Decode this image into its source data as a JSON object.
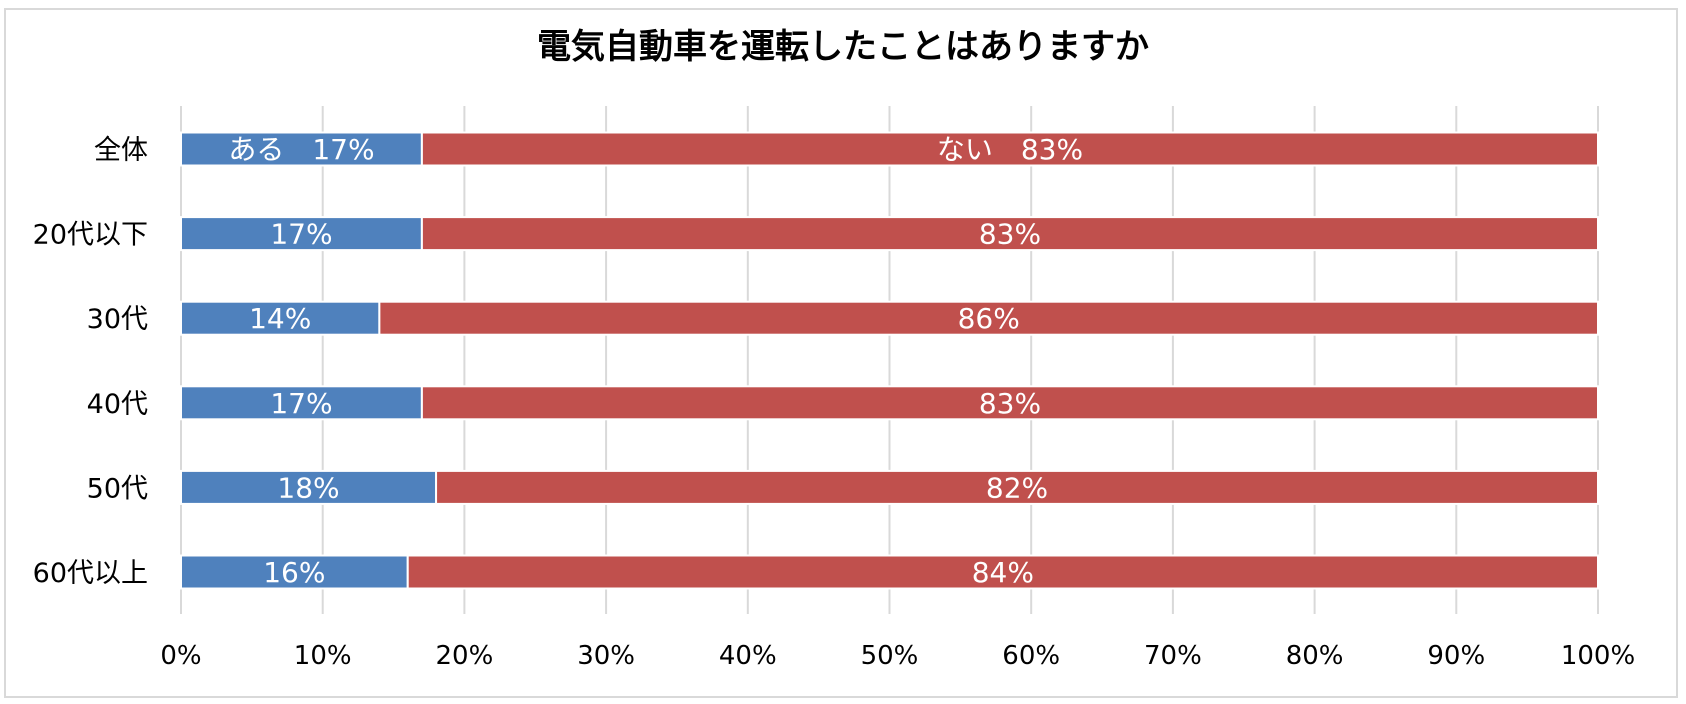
{
  "chart_data": {
    "type": "bar",
    "orientation": "horizontal",
    "stacked": "percent",
    "title": "電気自動車を運転したことはありますか",
    "categories": [
      "全体",
      "20代以下",
      "30代",
      "40代",
      "50代",
      "60代以上"
    ],
    "series": [
      {
        "values": [
          17,
          17,
          14,
          17,
          18,
          16
        ],
        "labels": [
          "ある　17%",
          "17%",
          "14%",
          "17%",
          "18%",
          "16%"
        ],
        "color": "#4f81bd"
      },
      {
        "values": [
          83,
          83,
          86,
          83,
          82,
          84
        ],
        "labels": [
          "ない　83%",
          "83%",
          "86%",
          "83%",
          "82%",
          "84%"
        ],
        "color": "#c0504d"
      }
    ],
    "xlim": [
      0,
      100
    ],
    "xticks": [
      "0%",
      "10%",
      "20%",
      "30%",
      "40%",
      "50%",
      "60%",
      "70%",
      "80%",
      "90%",
      "100%"
    ],
    "grid": "vertical",
    "legend": "none"
  }
}
